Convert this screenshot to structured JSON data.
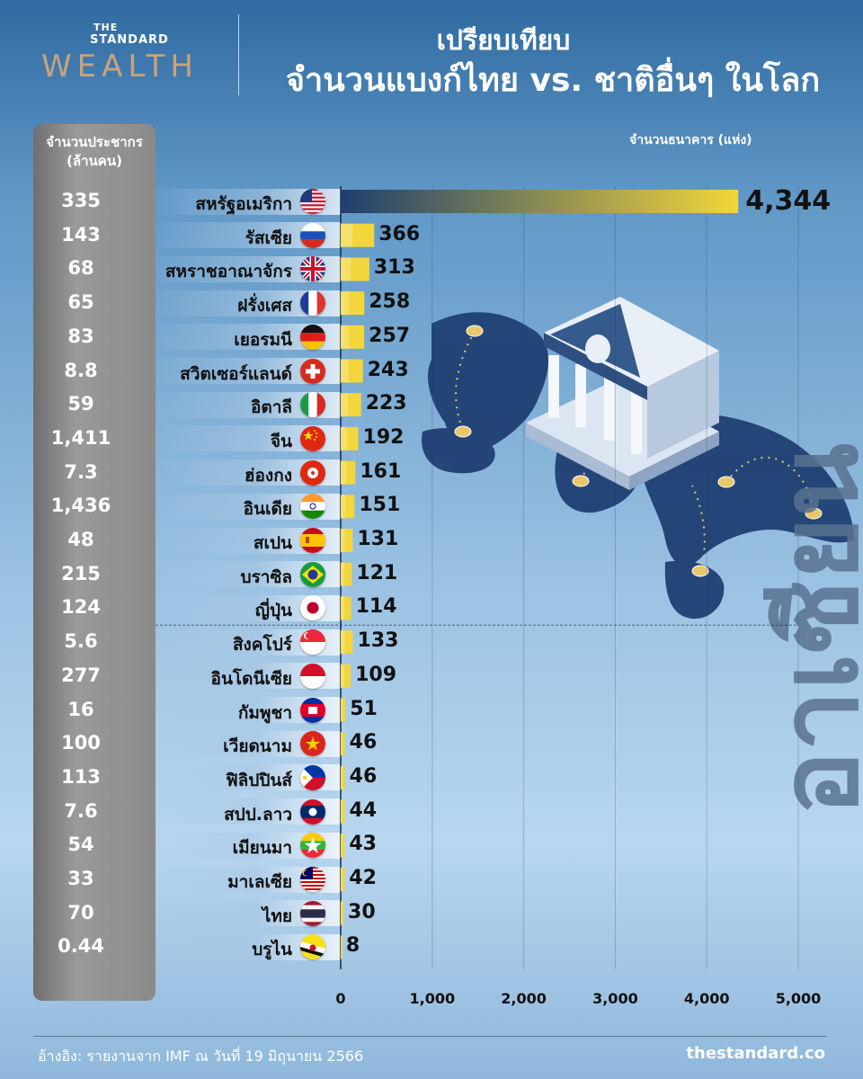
{
  "header": {
    "logo_the": "THE",
    "logo_standard": "STANDARD",
    "logo_wealth": "WEALTH",
    "title_line1": "เปรียบเทียบ",
    "title_line2": "จำนวนแบงก์ไทย vs. ชาติอื่นๆ ในโลก"
  },
  "population_panel": {
    "title_line1": "จำนวนประชากร",
    "title_line2": "(ล้านคน)"
  },
  "bank_axis_label": "จำนวนธนาคาร (แห่ง)",
  "asean_label": "อาเซียน",
  "footer": {
    "source": "อ้างอิง: รายงานจาก IMF ณ วันที่ 19 มิถุนายน 2566",
    "site": "thestandard.co"
  },
  "colors": {
    "bar_start": "#1f3f6e",
    "bar_end": "#f2d63b",
    "text_dark": "#111111",
    "population_panel": "#8a8a8a"
  },
  "chart_data": {
    "type": "bar",
    "orientation": "horizontal",
    "title": "จำนวนแบงก์ไทย vs. ชาติอื่นๆ ในโลก",
    "xlabel": "จำนวนธนาคาร (แห่ง)",
    "xlim": [
      0,
      5000
    ],
    "xticks": [
      "0",
      "1,000",
      "2,000",
      "3,000",
      "4,000",
      "5,000"
    ],
    "grid": true,
    "groups": [
      {
        "label": "",
        "from_index": 0,
        "to_index": 12
      },
      {
        "label": "อาเซียน",
        "from_index": 13,
        "to_index": 22
      }
    ],
    "rows": [
      {
        "country": "สหรัฐอเมริกา",
        "flag": "usa-flag-icon",
        "banks": 4344,
        "banks_label": "4,344",
        "population": "335"
      },
      {
        "country": "รัสเซีย",
        "flag": "russia-flag-icon",
        "banks": 366,
        "banks_label": "366",
        "population": "143"
      },
      {
        "country": "สหราชอาณาจักร",
        "flag": "uk-flag-icon",
        "banks": 313,
        "banks_label": "313",
        "population": "68"
      },
      {
        "country": "ฝรั่งเศส",
        "flag": "france-flag-icon",
        "banks": 258,
        "banks_label": "258",
        "population": "65"
      },
      {
        "country": "เยอรมนี",
        "flag": "germany-flag-icon",
        "banks": 257,
        "banks_label": "257",
        "population": "83"
      },
      {
        "country": "สวิตเซอร์แลนด์",
        "flag": "switzerland-flag-icon",
        "banks": 243,
        "banks_label": "243",
        "population": "8.8"
      },
      {
        "country": "อิตาลี",
        "flag": "italy-flag-icon",
        "banks": 223,
        "banks_label": "223",
        "population": "59"
      },
      {
        "country": "จีน",
        "flag": "china-flag-icon",
        "banks": 192,
        "banks_label": "192",
        "population": "1,411"
      },
      {
        "country": "ฮ่องกง",
        "flag": "hongkong-flag-icon",
        "banks": 161,
        "banks_label": "161",
        "population": "7.3"
      },
      {
        "country": "อินเดีย",
        "flag": "india-flag-icon",
        "banks": 151,
        "banks_label": "151",
        "population": "1,436"
      },
      {
        "country": "สเปน",
        "flag": "spain-flag-icon",
        "banks": 131,
        "banks_label": "131",
        "population": "48"
      },
      {
        "country": "บราซิล",
        "flag": "brazil-flag-icon",
        "banks": 121,
        "banks_label": "121",
        "population": "215"
      },
      {
        "country": "ญี่ปุ่น",
        "flag": "japan-flag-icon",
        "banks": 114,
        "banks_label": "114",
        "population": "124"
      },
      {
        "country": "สิงคโปร์",
        "flag": "singapore-flag-icon",
        "banks": 133,
        "banks_label": "133",
        "population": "5.6"
      },
      {
        "country": "อินโดนีเซีย",
        "flag": "indonesia-flag-icon",
        "banks": 109,
        "banks_label": "109",
        "population": "277"
      },
      {
        "country": "กัมพูชา",
        "flag": "cambodia-flag-icon",
        "banks": 51,
        "banks_label": "51",
        "population": "16"
      },
      {
        "country": "เวียดนาม",
        "flag": "vietnam-flag-icon",
        "banks": 46,
        "banks_label": "46",
        "population": "100"
      },
      {
        "country": "ฟิลิปปินส์",
        "flag": "philippines-flag-icon",
        "banks": 46,
        "banks_label": "46",
        "population": "113"
      },
      {
        "country": "สปป.ลาว",
        "flag": "laos-flag-icon",
        "banks": 44,
        "banks_label": "44",
        "population": "7.6"
      },
      {
        "country": "เมียนมา",
        "flag": "myanmar-flag-icon",
        "banks": 43,
        "banks_label": "43",
        "population": "54"
      },
      {
        "country": "มาเลเซีย",
        "flag": "malaysia-flag-icon",
        "banks": 42,
        "banks_label": "42",
        "population": "33"
      },
      {
        "country": "ไทย",
        "flag": "thailand-flag-icon",
        "banks": 30,
        "banks_label": "30",
        "population": "70"
      },
      {
        "country": "บรูไน",
        "flag": "brunei-flag-icon",
        "banks": 8,
        "banks_label": "8",
        "population": "0.44"
      }
    ]
  }
}
